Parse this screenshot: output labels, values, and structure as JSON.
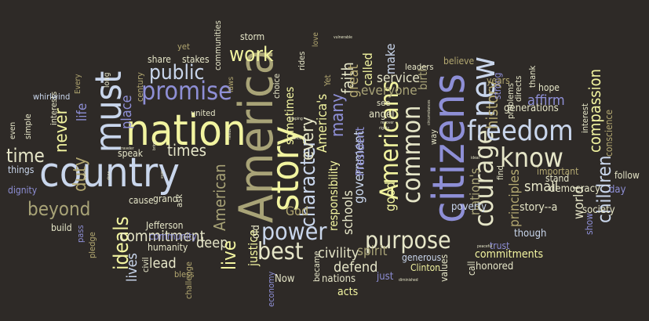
{
  "words": [
    "America",
    "citizens",
    "nation",
    "country",
    "story",
    "must",
    "new",
    "courage",
    "freedom",
    "know",
    "Americans",
    "common",
    "promise",
    "purpose",
    "power",
    "best",
    "work",
    "public",
    "character",
    "children",
    "every",
    "ideals",
    "never",
    "time",
    "beyond",
    "commitment",
    "duty",
    "times",
    "faith",
    "many",
    "great",
    "history",
    "compassion",
    "service",
    "everyone",
    "affirm",
    "civility",
    "defend",
    "spirit",
    "schools",
    "government",
    "responsibility",
    "lead",
    "lives",
    "deep",
    "live",
    "American",
    "small",
    "good",
    "world",
    "place",
    "life",
    "principles",
    "nation's",
    "story--a",
    "democracy",
    "sometimes",
    "America's",
    "called",
    "make",
    "birth",
    "leaders",
    "poverty",
    "commitments",
    "honored",
    "justice",
    "old",
    "God",
    "acts",
    "nations",
    "Clinton",
    "generous",
    "values",
    "call",
    "trust",
    "though",
    "show",
    "society",
    "follow",
    "day",
    "conscience",
    "interest",
    "stand",
    "hope",
    "generations",
    "important",
    "strong",
    "thank",
    "years",
    "believe",
    "directs",
    "problems",
    "find",
    "way",
    "President",
    "angel",
    "see",
    "became",
    "Now",
    "civil",
    "bless",
    "challenge",
    "humanity",
    "community",
    "Jefferson",
    "pledge",
    "pass",
    "build",
    "grand",
    "ask",
    "cause",
    "speak",
    "united",
    "century",
    "yet",
    "share",
    "stakes",
    "storm",
    "communities",
    "laws",
    "rides",
    "love",
    "Yet",
    "choice",
    "dignity",
    "things",
    "simple",
    "even",
    "interests",
    "whirlwind",
    "Every",
    "long",
    "economy",
    "just",
    "peaceful",
    "vulnerable",
    "shaping",
    "concern",
    "recover",
    "circumstances",
    "diminished",
    "traveler",
    "bring",
    "hold",
    "done",
    "ever",
    "rights",
    "needs",
    "ideal"
  ]
}
